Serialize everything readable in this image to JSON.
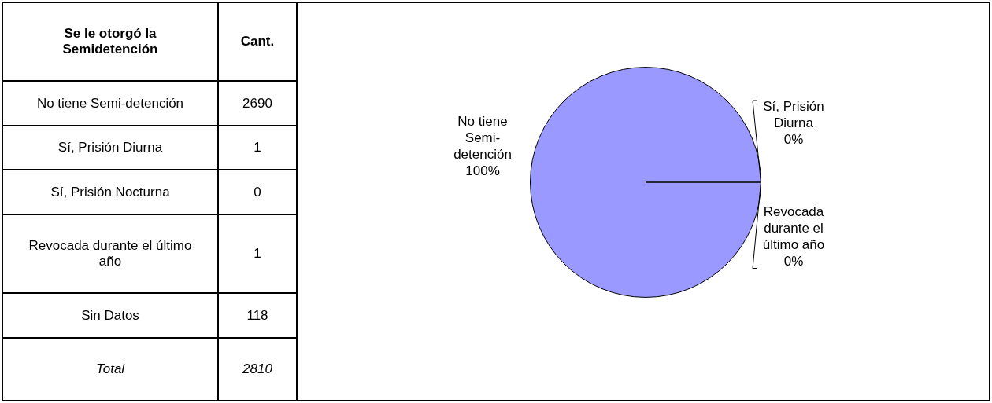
{
  "chart_data": [
    {
      "type": "other",
      "xlabel": "Se le otorgó la Semidetención",
      "ylabel": "Cant.",
      "categories": [
        "No tiene Semi-detención",
        "Sí, Prisión Diurna",
        "Sí, Prisión Nocturna",
        "Revocada durante el último año",
        "Sin Datos",
        "Total"
      ],
      "values": [
        2690,
        1,
        0,
        1,
        118,
        2810
      ],
      "data_labels": true
    },
    {
      "type": "pie",
      "categories": [
        "No tiene Semi-detención",
        "Sí, Prisión Diurna",
        "Revocada durante el último año"
      ],
      "values": [
        100,
        0,
        0
      ],
      "colors": [
        "#9999ff",
        "#9999ff",
        "#9999ff"
      ],
      "value_labels": [
        "100%",
        "0%",
        "0%"
      ]
    }
  ]
}
